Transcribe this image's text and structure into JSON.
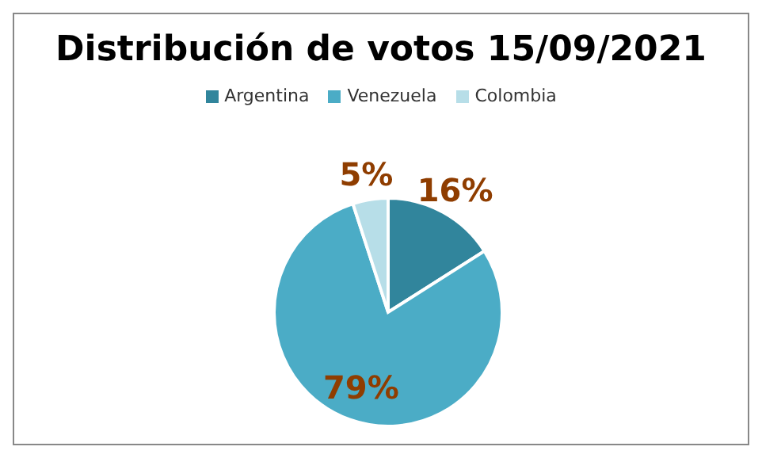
{
  "chart_data": {
    "type": "pie",
    "title": "Distribución de votos 15/09/2021",
    "categories": [
      "Argentina",
      "Venezuela",
      "Colombia"
    ],
    "values": [
      16,
      79,
      5
    ],
    "value_labels": [
      "16%",
      "79%",
      "5%"
    ],
    "colors": [
      "#31859c",
      "#4bacc6",
      "#b7dee8"
    ],
    "legend": "top"
  }
}
